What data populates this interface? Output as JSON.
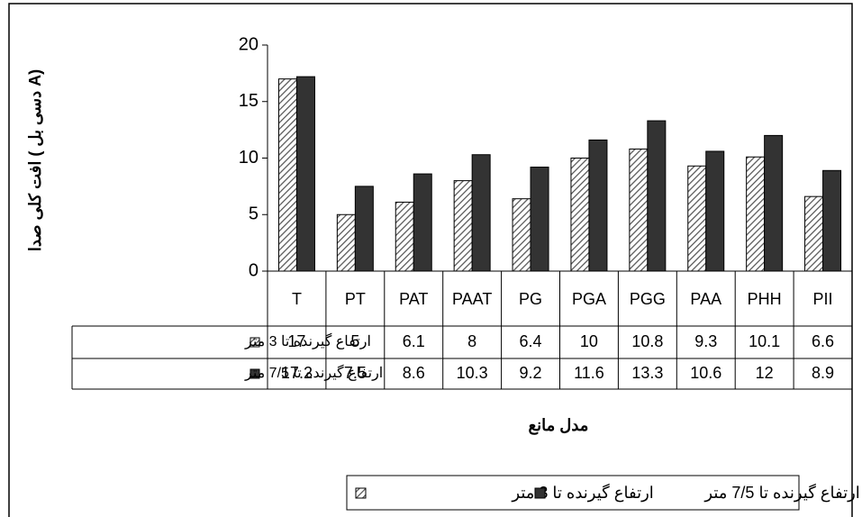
{
  "chart_data": {
    "type": "bar",
    "y_axis_title": "افت کلی صدا ( دسی بل A)",
    "x_axis_title": "مدل مانع",
    "categories": [
      "T",
      "PT",
      "PAT",
      "PAAT",
      "PG",
      "PGA",
      "PGG",
      "PAA",
      "PHH",
      "PII"
    ],
    "series": [
      {
        "name": "ارتفاع گیرنده تا 3 متر",
        "color": "#555555",
        "pattern": "hatch",
        "values": [
          17,
          5,
          6.1,
          8,
          6.4,
          10,
          10.8,
          9.3,
          10.1,
          6.6
        ]
      },
      {
        "name": "ارتفاع گیرنده تا 7/5 متر",
        "color": "#333333",
        "pattern": "solid",
        "values": [
          17.2,
          7.5,
          8.6,
          10.3,
          9.2,
          11.6,
          13.3,
          10.6,
          12,
          8.9
        ]
      }
    ],
    "ylim": [
      0,
      20
    ],
    "yticks": [
      0,
      5,
      10,
      15,
      20
    ],
    "grid": false,
    "data_table": true
  }
}
